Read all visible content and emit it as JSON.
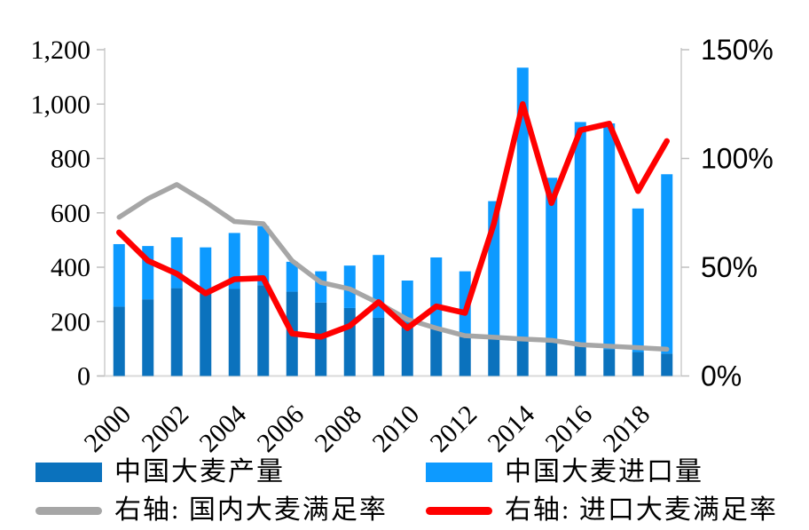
{
  "chart_data": {
    "type": "bar",
    "subtype": "stacked-bar-with-lines-combo",
    "title": "",
    "categories": [
      "2000",
      "2001",
      "2002",
      "2003",
      "2004",
      "2005",
      "2006",
      "2007",
      "2008",
      "2009",
      "2010",
      "2011",
      "2012",
      "2013",
      "2014",
      "2015",
      "2016",
      "2017",
      "2018",
      "2019"
    ],
    "series": [
      {
        "name": "中国大麦产量",
        "type": "bar",
        "stack": "total",
        "axis": "left",
        "color": "#0B72BD",
        "values": [
          255,
          282,
          323,
          313,
          320,
          334,
          310,
          270,
          250,
          214,
          197,
          175,
          155,
          140,
          131,
          126,
          110,
          99,
          88,
          82
        ]
      },
      {
        "name": "中国大麦进口量",
        "type": "bar",
        "stack": "total",
        "axis": "left",
        "color": "#0D9AFF",
        "values": [
          230,
          196,
          187,
          160,
          206,
          217,
          110,
          115,
          156,
          231,
          154,
          261,
          230,
          503,
          1003,
          603,
          824,
          830,
          528,
          660
        ]
      },
      {
        "name": "右轴: 国内大麦满足率",
        "type": "line",
        "axis": "right",
        "color": "#A6A6A6",
        "values": [
          73,
          81.5,
          88,
          80,
          71,
          70,
          53,
          43,
          40,
          33.5,
          26,
          22,
          18.5,
          17.8,
          17,
          16.4,
          14.4,
          13.7,
          13,
          12.3
        ]
      },
      {
        "name": "右轴: 进口大麦满足率",
        "type": "line",
        "axis": "right",
        "color": "#FF0000",
        "values": [
          66,
          53,
          47,
          38,
          44.5,
          45,
          19.5,
          18,
          23,
          34,
          22,
          32,
          29,
          70,
          125,
          79.5,
          113,
          116,
          85,
          108
        ]
      }
    ],
    "left_axis": {
      "min": 0,
      "max": 1200,
      "tick_values": [
        0,
        200,
        400,
        600,
        800,
        1000,
        1200
      ],
      "tick_labels": [
        "0",
        "200",
        "400",
        "600",
        "800",
        "1,000",
        "1,200"
      ]
    },
    "right_axis": {
      "min": 0,
      "max": 150,
      "unit": "%",
      "tick_values": [
        0,
        50,
        100,
        150
      ],
      "tick_labels": [
        "0%",
        "50%",
        "100%",
        "150%"
      ]
    },
    "x_axis": {
      "tick_labels": [
        "2000",
        "2002",
        "2004",
        "2006",
        "2008",
        "2010",
        "2012",
        "2014",
        "2016",
        "2018"
      ],
      "label_rotation_deg": -45
    },
    "grid": "off",
    "legend_position": "bottom"
  },
  "colors": {
    "axis_line": "#D9D9D9",
    "tick_mark": "#BFBFBF",
    "text": "#000000",
    "background": "#FFFFFF"
  }
}
